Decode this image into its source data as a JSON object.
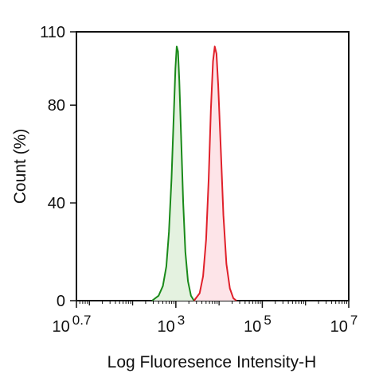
{
  "chart_data": {
    "type": "area",
    "title": "",
    "xlabel": "Log Fluoresence Intensity-H",
    "ylabel": "Count  (%)",
    "x_scale": "log",
    "xlim": [
      0.7,
      7
    ],
    "ylim": [
      0,
      110
    ],
    "x_ticks": [
      {
        "base": "10",
        "exp": "0.7",
        "value": 0.7
      },
      {
        "base": "10",
        "exp": "3",
        "value": 3
      },
      {
        "base": "10",
        "exp": "5",
        "value": 5
      },
      {
        "base": "10",
        "exp": "7",
        "value": 7
      }
    ],
    "y_ticks": [
      "0",
      "40",
      "80",
      "110"
    ],
    "y_tick_values": [
      0,
      40,
      80,
      110
    ],
    "grid": false,
    "legend": "none",
    "series": [
      {
        "color": "#1a8a1a",
        "fill": "#e4f2e0",
        "points": [
          [
            2.45,
            0
          ],
          [
            2.6,
            2
          ],
          [
            2.7,
            6
          ],
          [
            2.78,
            14
          ],
          [
            2.84,
            28
          ],
          [
            2.9,
            50
          ],
          [
            2.95,
            75
          ],
          [
            2.99,
            95
          ],
          [
            3.02,
            104
          ],
          [
            3.05,
            102
          ],
          [
            3.08,
            90
          ],
          [
            3.12,
            68
          ],
          [
            3.17,
            40
          ],
          [
            3.22,
            20
          ],
          [
            3.28,
            8
          ],
          [
            3.35,
            2
          ],
          [
            3.42,
            0
          ]
        ]
      },
      {
        "color": "#e0202a",
        "fill": "#fde4e8",
        "points": [
          [
            3.42,
            0
          ],
          [
            3.55,
            3
          ],
          [
            3.63,
            10
          ],
          [
            3.7,
            25
          ],
          [
            3.76,
            50
          ],
          [
            3.81,
            78
          ],
          [
            3.86,
            98
          ],
          [
            3.9,
            104
          ],
          [
            3.94,
            101
          ],
          [
            3.98,
            88
          ],
          [
            4.04,
            62
          ],
          [
            4.1,
            35
          ],
          [
            4.17,
            15
          ],
          [
            4.25,
            5
          ],
          [
            4.33,
            1
          ],
          [
            4.4,
            0
          ]
        ]
      }
    ]
  }
}
